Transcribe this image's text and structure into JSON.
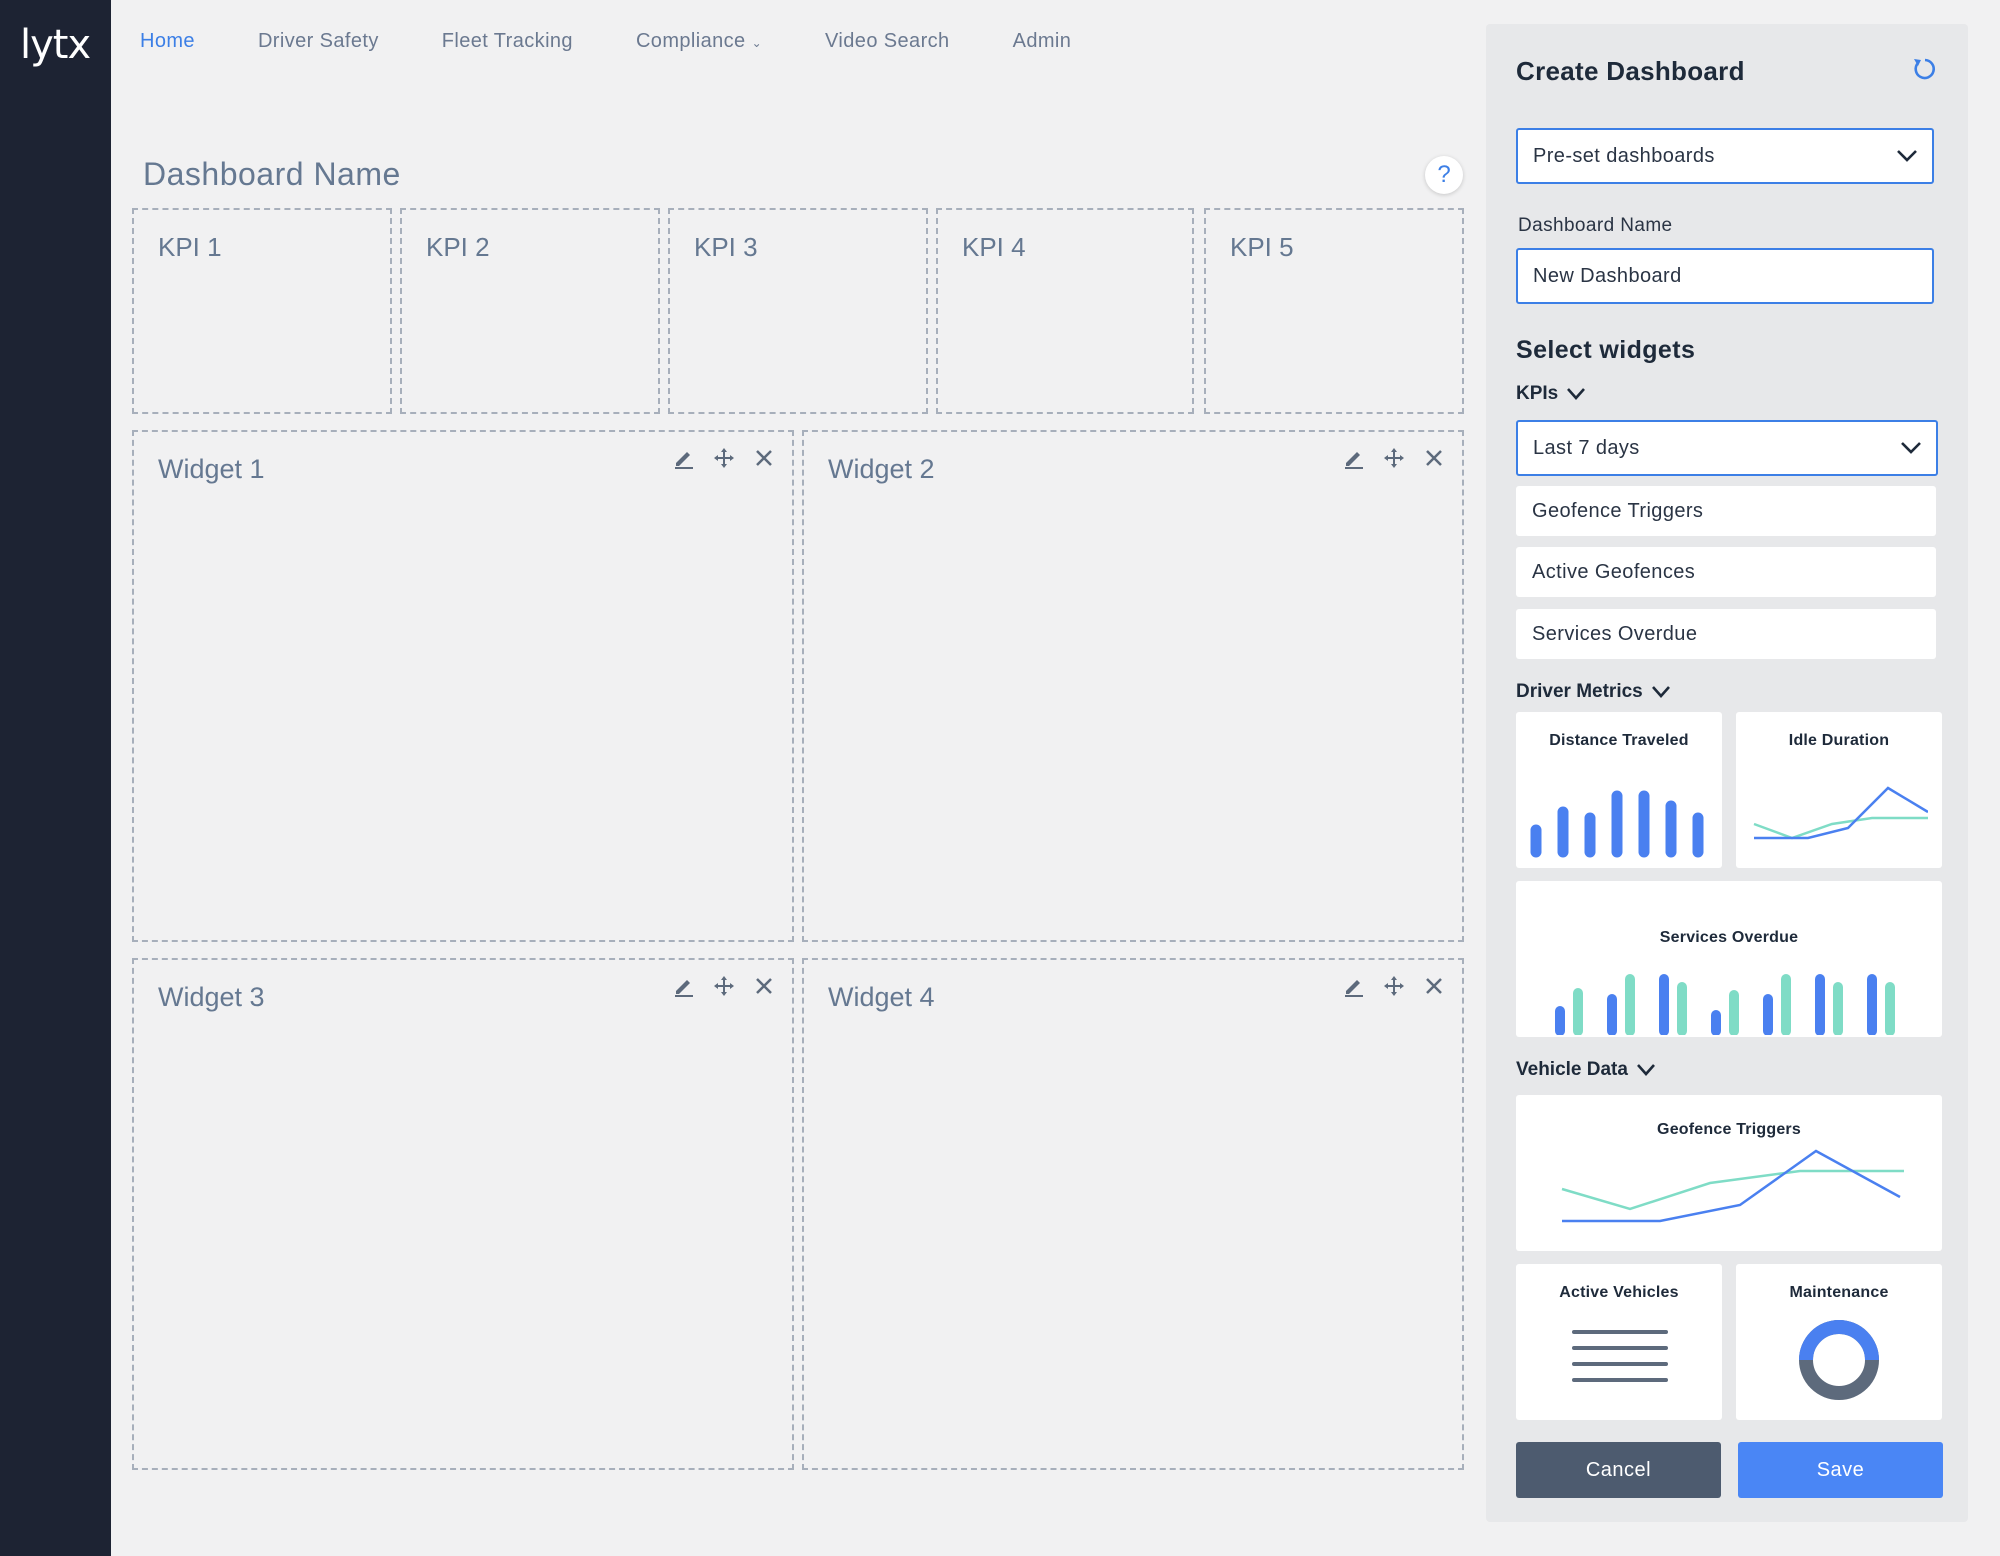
{
  "app": {
    "logo": "lytx"
  },
  "nav": {
    "items": [
      {
        "label": "Home"
      },
      {
        "label": "Driver Safety"
      },
      {
        "label": "Fleet Tracking"
      },
      {
        "label": "Compliance"
      },
      {
        "label": "Video Search"
      },
      {
        "label": "Admin"
      }
    ]
  },
  "dashboard": {
    "title": "Dashboard Name",
    "help": "?",
    "kpis": [
      "KPI 1",
      "KPI 2",
      "KPI 3",
      "KPI 4",
      "KPI 5"
    ],
    "widgets": [
      "Widget 1",
      "Widget 2",
      "Widget 3",
      "Widget 4"
    ]
  },
  "panel": {
    "title": "Create Dashboard",
    "preset_select": "Pre-set dashboards",
    "name_label": "Dashboard Name",
    "name_value": "New Dashboard",
    "select_widgets": "Select widgets",
    "kpis_heading": "KPIs",
    "range_select": "Last 7 days",
    "kpi_options": [
      "Geofence Triggers",
      "Active Geofences",
      "Services Overdue"
    ],
    "driver_metrics_heading": "Driver Metrics",
    "driver_cards": [
      "Distance Traveled",
      "Idle Duration",
      "Services Overdue"
    ],
    "vehicle_data_heading": "Vehicle Data",
    "vehicle_cards": [
      "Geofence Triggers",
      "Active Vehicles",
      "Maintenance"
    ],
    "cancel": "Cancel",
    "save": "Save"
  },
  "colors": {
    "accent": "#3c7fe6",
    "sidebar": "#1d2333",
    "teal": "#7fdcc6",
    "blue": "#4a80f0"
  }
}
